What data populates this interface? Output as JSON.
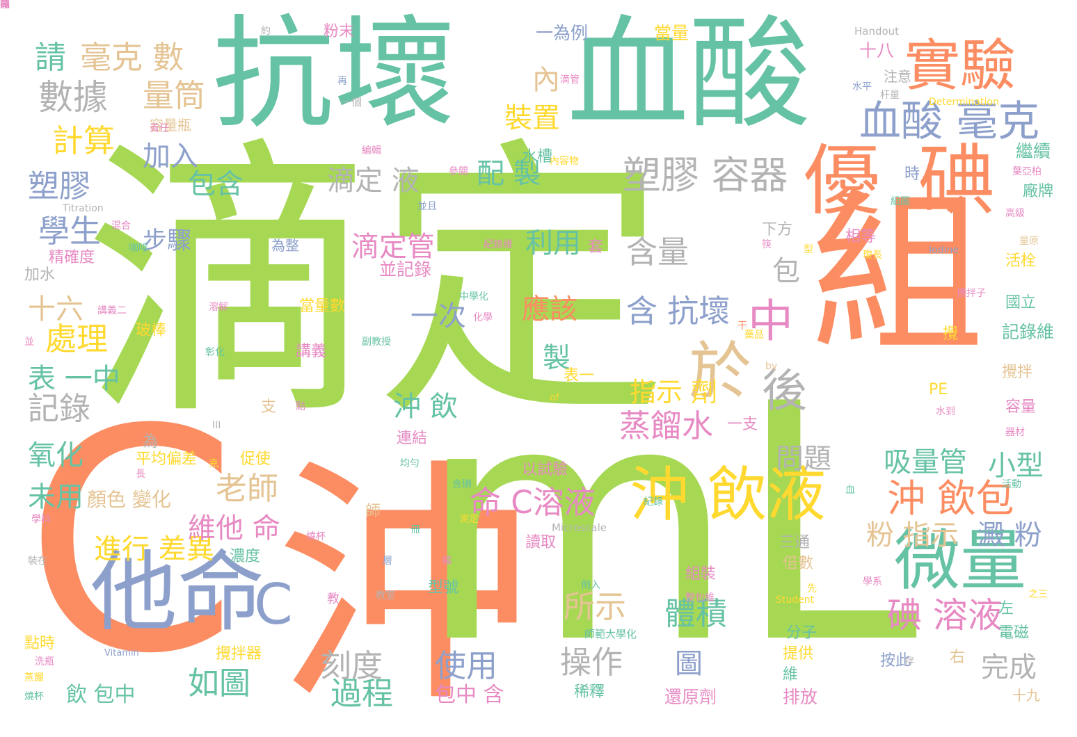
{
  "palette": {
    "green": "#a6d854",
    "teal": "#66c2a5",
    "orange": "#fc8d62",
    "blue": "#8da0cb",
    "pink": "#e78ac3",
    "yellow": "#ffd92f",
    "tan": "#e5c494",
    "gray": "#b3b3b3"
  },
  "words": [
    {
      "text": "滴定",
      "color": "green"
    },
    {
      "text": "沖",
      "color": "orange"
    },
    {
      "text": "mL",
      "color": "green"
    },
    {
      "text": "組",
      "color": "orange"
    },
    {
      "text": "C",
      "color": "orange"
    },
    {
      "text": "抗壞",
      "color": "teal"
    },
    {
      "text": "血酸",
      "color": "teal"
    },
    {
      "text": "他命",
      "color": "blue"
    },
    {
      "text": "C",
      "color": "blue"
    },
    {
      "text": "優",
      "color": "orange"
    },
    {
      "text": "碘",
      "color": "orange"
    },
    {
      "text": "實驗",
      "color": "orange"
    },
    {
      "text": "微量",
      "color": "teal"
    },
    {
      "text": "沖 飲液",
      "color": "yellow"
    },
    {
      "text": "於",
      "color": "tan"
    },
    {
      "text": "後",
      "color": "gray"
    },
    {
      "text": "中",
      "color": "pink"
    },
    {
      "text": "血酸 毫克",
      "color": "blue"
    },
    {
      "text": "塑膠 容器",
      "color": "gray"
    },
    {
      "text": "沖 飲包",
      "color": "orange"
    },
    {
      "text": "碘 溶液",
      "color": "pink"
    },
    {
      "text": "命 C溶液",
      "color": "pink"
    },
    {
      "text": "數據",
      "color": "gray"
    },
    {
      "text": "請",
      "color": "teal"
    },
    {
      "text": "毫克 數",
      "color": "tan"
    },
    {
      "text": "計算",
      "color": "yellow"
    },
    {
      "text": "量筒",
      "color": "tan"
    },
    {
      "text": "塑膠",
      "color": "blue"
    },
    {
      "text": "學生",
      "color": "blue"
    },
    {
      "text": "處理",
      "color": "yellow"
    },
    {
      "text": "十六",
      "color": "tan"
    },
    {
      "text": "表 一中",
      "color": "teal"
    },
    {
      "text": "記錄",
      "color": "gray"
    },
    {
      "text": "氧化",
      "color": "teal"
    },
    {
      "text": "未用",
      "color": "teal"
    },
    {
      "text": "進行 差異",
      "color": "yellow"
    },
    {
      "text": "維他 命",
      "color": "pink"
    },
    {
      "text": "老師",
      "color": "tan"
    },
    {
      "text": "如圖",
      "color": "teal"
    },
    {
      "text": "刻度",
      "color": "gray"
    },
    {
      "text": "過程",
      "color": "teal"
    },
    {
      "text": "使用",
      "color": "blue"
    },
    {
      "text": "所示",
      "color": "tan"
    },
    {
      "text": "操作",
      "color": "gray"
    },
    {
      "text": "體積",
      "color": "teal"
    },
    {
      "text": "圖",
      "color": "blue"
    },
    {
      "text": "蒸餾水",
      "color": "pink"
    },
    {
      "text": "指示 劑",
      "color": "yellow"
    },
    {
      "text": "含 抗壞",
      "color": "blue"
    },
    {
      "text": "含量",
      "color": "gray"
    },
    {
      "text": "利用",
      "color": "teal"
    },
    {
      "text": "應該",
      "color": "orange"
    },
    {
      "text": "一次",
      "color": "blue"
    },
    {
      "text": "製",
      "color": "teal"
    },
    {
      "text": "沖 飲",
      "color": "teal"
    },
    {
      "text": "滴定管",
      "color": "pink"
    },
    {
      "text": "配 製",
      "color": "teal"
    },
    {
      "text": "滴定 液",
      "color": "gray"
    },
    {
      "text": "包含",
      "color": "teal"
    },
    {
      "text": "加入",
      "color": "blue"
    },
    {
      "text": "裝置",
      "color": "yellow"
    },
    {
      "text": "內",
      "color": "tan"
    },
    {
      "text": "步驟",
      "color": "blue"
    },
    {
      "text": "吸量管",
      "color": "teal"
    },
    {
      "text": "小型",
      "color": "teal"
    },
    {
      "text": "粉 指示",
      "color": "tan"
    },
    {
      "text": "澱 粉",
      "color": "blue"
    },
    {
      "text": "問題",
      "color": "gray"
    },
    {
      "text": "包",
      "color": "gray"
    },
    {
      "text": "完成",
      "color": "gray"
    },
    {
      "text": "顏色 變化",
      "color": "tan"
    },
    {
      "text": "玻棒",
      "color": "yellow"
    },
    {
      "text": "當量數",
      "color": "yellow"
    },
    {
      "text": "飲 包中",
      "color": "teal"
    },
    {
      "text": "包中 含",
      "color": "pink"
    },
    {
      "text": "還原劑",
      "color": "pink"
    },
    {
      "text": "稀釋",
      "color": "teal"
    },
    {
      "text": "排放",
      "color": "pink"
    },
    {
      "text": "按此",
      "color": "blue"
    },
    {
      "text": "十九",
      "color": "tan"
    },
    {
      "text": "攪拌器",
      "color": "yellow"
    },
    {
      "text": "讀取",
      "color": "pink"
    },
    {
      "text": "並記錄",
      "color": "pink"
    },
    {
      "text": "十八",
      "color": "pink"
    },
    {
      "text": "注意",
      "color": "gray"
    },
    {
      "text": "當量",
      "color": "yellow"
    },
    {
      "text": "一為例",
      "color": "blue"
    },
    {
      "text": "粉末",
      "color": "pink"
    },
    {
      "text": "Handout",
      "color": "gray"
    },
    {
      "text": "Titration",
      "color": "gray"
    },
    {
      "text": "Iodine",
      "color": "blue"
    },
    {
      "text": "Microscale",
      "color": "gray"
    },
    {
      "text": "Student",
      "color": "yellow"
    },
    {
      "text": "Determination",
      "color": "yellow"
    },
    {
      "text": "Vitamin",
      "color": "blue"
    },
    {
      "text": "容量瓶",
      "color": "tan"
    },
    {
      "text": "水槽",
      "color": "teal"
    },
    {
      "text": "繼續",
      "color": "teal"
    },
    {
      "text": "活栓",
      "color": "yellow"
    },
    {
      "text": "國立",
      "color": "teal"
    },
    {
      "text": "記錄維",
      "color": "teal"
    },
    {
      "text": "攪拌",
      "color": "tan"
    },
    {
      "text": "容量",
      "color": "pink"
    },
    {
      "text": "電磁",
      "color": "teal"
    },
    {
      "text": "組裝",
      "color": "pink"
    },
    {
      "text": "分子",
      "color": "teal"
    },
    {
      "text": "提供",
      "color": "yellow"
    },
    {
      "text": "倍數",
      "color": "tan"
    },
    {
      "text": "三通",
      "color": "gray"
    },
    {
      "text": "促使",
      "color": "yellow"
    },
    {
      "text": "平均偏差",
      "color": "yellow"
    },
    {
      "text": "濃度",
      "color": "teal"
    },
    {
      "text": "連結",
      "color": "pink"
    },
    {
      "text": "一支",
      "color": "pink"
    },
    {
      "text": "以試驗",
      "color": "pink"
    },
    {
      "text": "型號",
      "color": "teal"
    },
    {
      "text": "加水",
      "color": "gray"
    },
    {
      "text": "精確度",
      "color": "pink"
    },
    {
      "text": "講義",
      "color": "pink"
    },
    {
      "text": "為整",
      "color": "blue"
    },
    {
      "text": "下方",
      "color": "gray"
    },
    {
      "text": "相等",
      "color": "pink"
    },
    {
      "text": "廠牌",
      "color": "teal"
    },
    {
      "text": "時",
      "color": "blue"
    },
    {
      "text": "PE",
      "color": "yellow"
    },
    {
      "text": "表一",
      "color": "yellow"
    },
    {
      "text": "點時",
      "color": "yellow"
    },
    {
      "text": "左",
      "color": "teal"
    },
    {
      "text": "右",
      "color": "tan"
    },
    {
      "text": "維",
      "color": "teal"
    },
    {
      "text": "攪",
      "color": "yellow"
    },
    {
      "text": "支",
      "color": "tan"
    },
    {
      "text": "為",
      "color": "gray"
    },
    {
      "text": "師",
      "color": "tan"
    },
    {
      "text": "套",
      "color": "pink"
    },
    {
      "text": "並",
      "color": "pink"
    },
    {
      "text": "約",
      "color": "gray"
    },
    {
      "text": "再",
      "color": "blue"
    },
    {
      "text": "一個",
      "color": "gray"
    },
    {
      "text": "編輯",
      "color": "pink"
    },
    {
      "text": "參閱",
      "color": "pink"
    },
    {
      "text": "內容物",
      "color": "yellow"
    },
    {
      "text": "並且",
      "color": "blue"
    },
    {
      "text": "混合",
      "color": "pink"
    },
    {
      "text": "紀錄維",
      "color": "pink"
    },
    {
      "text": "溶解",
      "color": "pink"
    },
    {
      "text": "彰化",
      "color": "teal"
    },
    {
      "text": "中學化",
      "color": "teal"
    },
    {
      "text": "副教授",
      "color": "teal"
    },
    {
      "text": "化學",
      "color": "pink"
    },
    {
      "text": "藥品",
      "color": "yellow"
    },
    {
      "text": "by",
      "color": "tan"
    },
    {
      "text": "of",
      "color": "yellow"
    },
    {
      "text": "均勻",
      "color": "teal"
    },
    {
      "text": "含碘",
      "color": "teal"
    },
    {
      "text": "測定",
      "color": "yellow"
    },
    {
      "text": "燒杯",
      "color": "pink"
    },
    {
      "text": "倒入",
      "color": "teal"
    },
    {
      "text": "整包維",
      "color": "pink"
    },
    {
      "text": "教室",
      "color": "gray"
    },
    {
      "text": "師範大學化",
      "color": "teal"
    },
    {
      "text": "洗瓶",
      "color": "pink"
    },
    {
      "text": "蒸餾",
      "color": "yellow"
    },
    {
      "text": "燒杯",
      "color": "teal"
    },
    {
      "text": "學科",
      "color": "pink"
    },
    {
      "text": "講義二",
      "color": "pink"
    },
    {
      "text": "裝在",
      "color": "gray"
    },
    {
      "text": "紀錄",
      "color": "teal"
    },
    {
      "text": "學系",
      "color": "pink"
    },
    {
      "text": "先",
      "color": "yellow"
    },
    {
      "text": "器材",
      "color": "pink"
    },
    {
      "text": "活動",
      "color": "teal"
    },
    {
      "text": "量原",
      "color": "tan"
    },
    {
      "text": "攪拌子",
      "color": "pink"
    },
    {
      "text": "瓊長",
      "color": "yellow"
    },
    {
      "text": "組圖",
      "color": "teal"
    },
    {
      "text": "高級",
      "color": "pink"
    },
    {
      "text": "葉亞柏",
      "color": "pink"
    },
    {
      "text": "杆量",
      "color": "gray"
    },
    {
      "text": "水平",
      "color": "blue"
    },
    {
      "text": "滴管",
      "color": "pink"
    },
    {
      "text": "責任",
      "color": "pink"
    },
    {
      "text": "筷",
      "color": "pink"
    },
    {
      "text": "型",
      "color": "yellow"
    },
    {
      "text": "拌",
      "color": "gray"
    },
    {
      "text": "之三",
      "color": "yellow"
    },
    {
      "text": "血",
      "color": "teal"
    },
    {
      "text": "水到",
      "color": "pink"
    },
    {
      "text": "冊",
      "color": "teal"
    },
    {
      "text": "干",
      "color": "orange"
    },
    {
      "text": "咖啡",
      "color": "teal"
    },
    {
      "text": "點",
      "color": "pink"
    },
    {
      "text": "III",
      "color": "gray"
    },
    {
      "text": "克",
      "color": "yellow"
    },
    {
      "text": "長",
      "color": "pink"
    },
    {
      "text": "教",
      "color": "pink"
    },
    {
      "text": "楊",
      "color": "pink"
    },
    {
      "text": "層",
      "color": "blue"
    },
    {
      "text": "劑",
      "color": "pink"
    },
    {
      "text": "瓶",
      "color": "pink"
    },
    {
      "text": "棒",
      "color": "pink"
    }
  ]
}
